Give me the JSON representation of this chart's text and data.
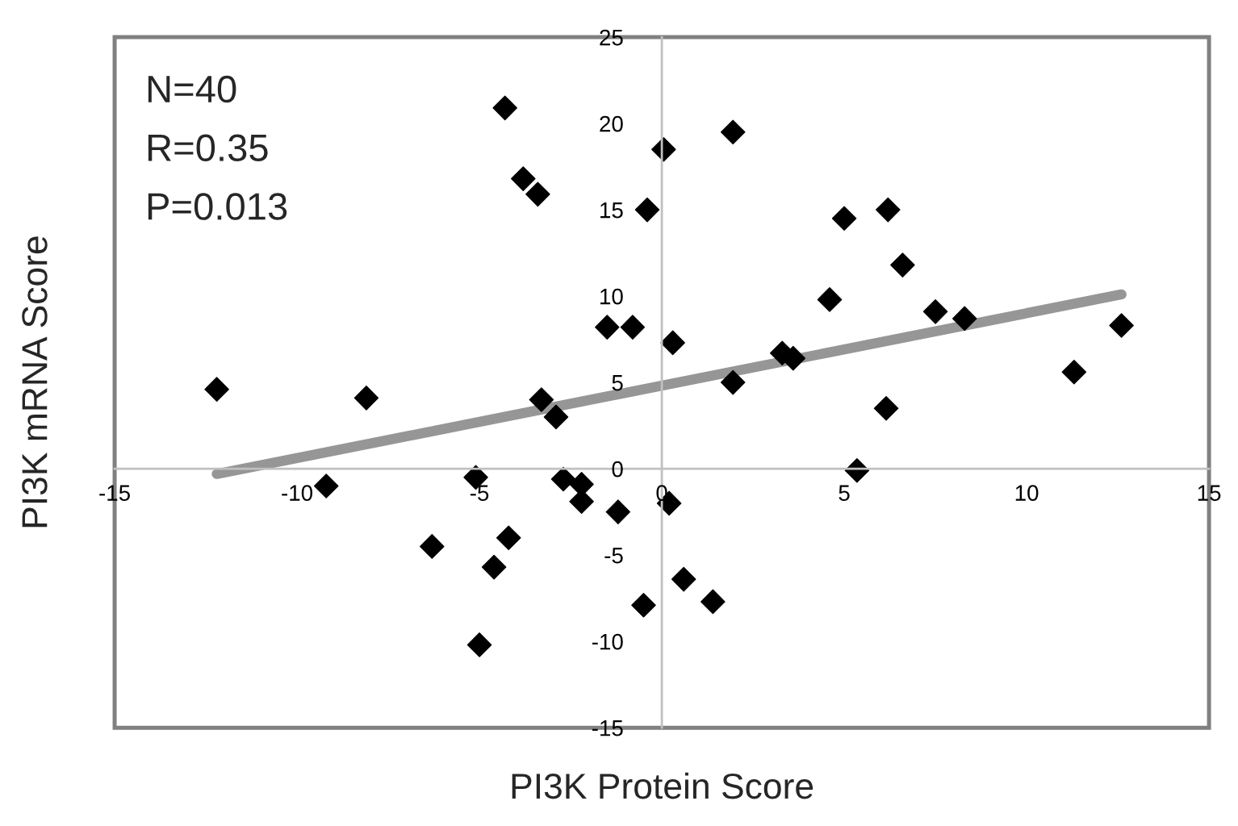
{
  "chart_data": {
    "type": "scatter",
    "xlabel": "PI3K Protein Score",
    "ylabel": "PI3K mRNA Score",
    "annotations": [
      "N=40",
      "R=0.35",
      "P=0.013"
    ],
    "xlim": [
      -15,
      15
    ],
    "ylim": [
      -15,
      25
    ],
    "xticks": [
      -15,
      -10,
      -5,
      0,
      5,
      10,
      15
    ],
    "yticks": [
      -15,
      -10,
      -5,
      0,
      5,
      10,
      15,
      20,
      25
    ],
    "grid": false,
    "marker": "diamond",
    "series": [
      {
        "color": "#000000",
        "x": [
          -12.2,
          -9.2,
          -8.1,
          -6.3,
          -5.1,
          -5.0,
          -4.6,
          -4.2,
          -4.3,
          -3.8,
          -3.4,
          -3.3,
          -2.9,
          -2.7,
          -2.2,
          -2.2,
          -1.5,
          -0.8,
          -1.2,
          -0.5,
          -0.4,
          0.05,
          0.3,
          0.2,
          0.6,
          1.4,
          1.95,
          1.95,
          3.3,
          3.6,
          4.6,
          5.0,
          5.35,
          6.2,
          6.15,
          6.6,
          7.5,
          8.3,
          11.3,
          12.6
        ],
        "values": [
          4.6,
          -1.0,
          4.1,
          -4.5,
          -0.5,
          -10.2,
          -5.7,
          -4.0,
          20.9,
          16.8,
          15.9,
          4.0,
          3.0,
          -0.6,
          -0.9,
          -1.9,
          8.2,
          8.2,
          -2.5,
          -7.9,
          15.0,
          18.5,
          7.3,
          -2.0,
          -6.4,
          -7.7,
          19.5,
          5.0,
          6.7,
          6.4,
          9.8,
          14.5,
          -0.1,
          15.0,
          3.5,
          11.8,
          9.1,
          8.7,
          5.6,
          8.3
        ]
      },
      {
        "type": "line",
        "color": "#969696",
        "marker": "none",
        "line_style": "solid",
        "x": [
          -12.2,
          12.6
        ],
        "values": [
          -0.3,
          10.1
        ]
      }
    ]
  }
}
